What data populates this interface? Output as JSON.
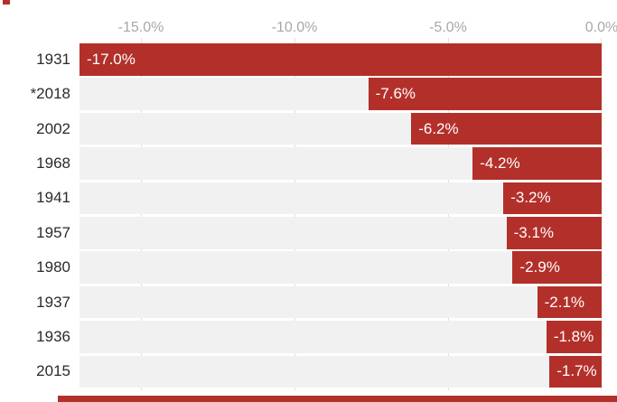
{
  "chart_data": {
    "type": "bar",
    "orientation": "horizontal",
    "categories": [
      "1931",
      "*2018",
      "2002",
      "1968",
      "1941",
      "1957",
      "1980",
      "1937",
      "1936",
      "2015"
    ],
    "values": [
      -17.0,
      -7.6,
      -6.2,
      -4.2,
      -3.2,
      -3.1,
      -2.9,
      -2.1,
      -1.8,
      -1.7
    ],
    "bar_labels": [
      "-17.0%",
      "-7.6%",
      "-6.2%",
      "-4.2%",
      "-3.2%",
      "-3.1%",
      "-2.9%",
      "-2.1%",
      "-1.8%",
      "-1.7%"
    ],
    "x_axis": {
      "position": "top",
      "range": [
        -17.0,
        0.0
      ],
      "ticks": [
        {
          "value": -15.0,
          "label": "-15.0%"
        },
        {
          "value": -10.0,
          "label": "-10.0%"
        },
        {
          "value": -5.0,
          "label": "-5.0%"
        },
        {
          "value": 0.0,
          "label": "0.0%"
        }
      ]
    },
    "grid": true,
    "legend": false,
    "value_labels_inside_bars": true
  },
  "colors": {
    "bar": "#b3302a",
    "row_background": "#f1f1f1",
    "gridline": "#e0e0e0",
    "axis_label": "#a8a8a8",
    "category_label": "#2b2b2b",
    "bar_label": "#ffffff"
  }
}
